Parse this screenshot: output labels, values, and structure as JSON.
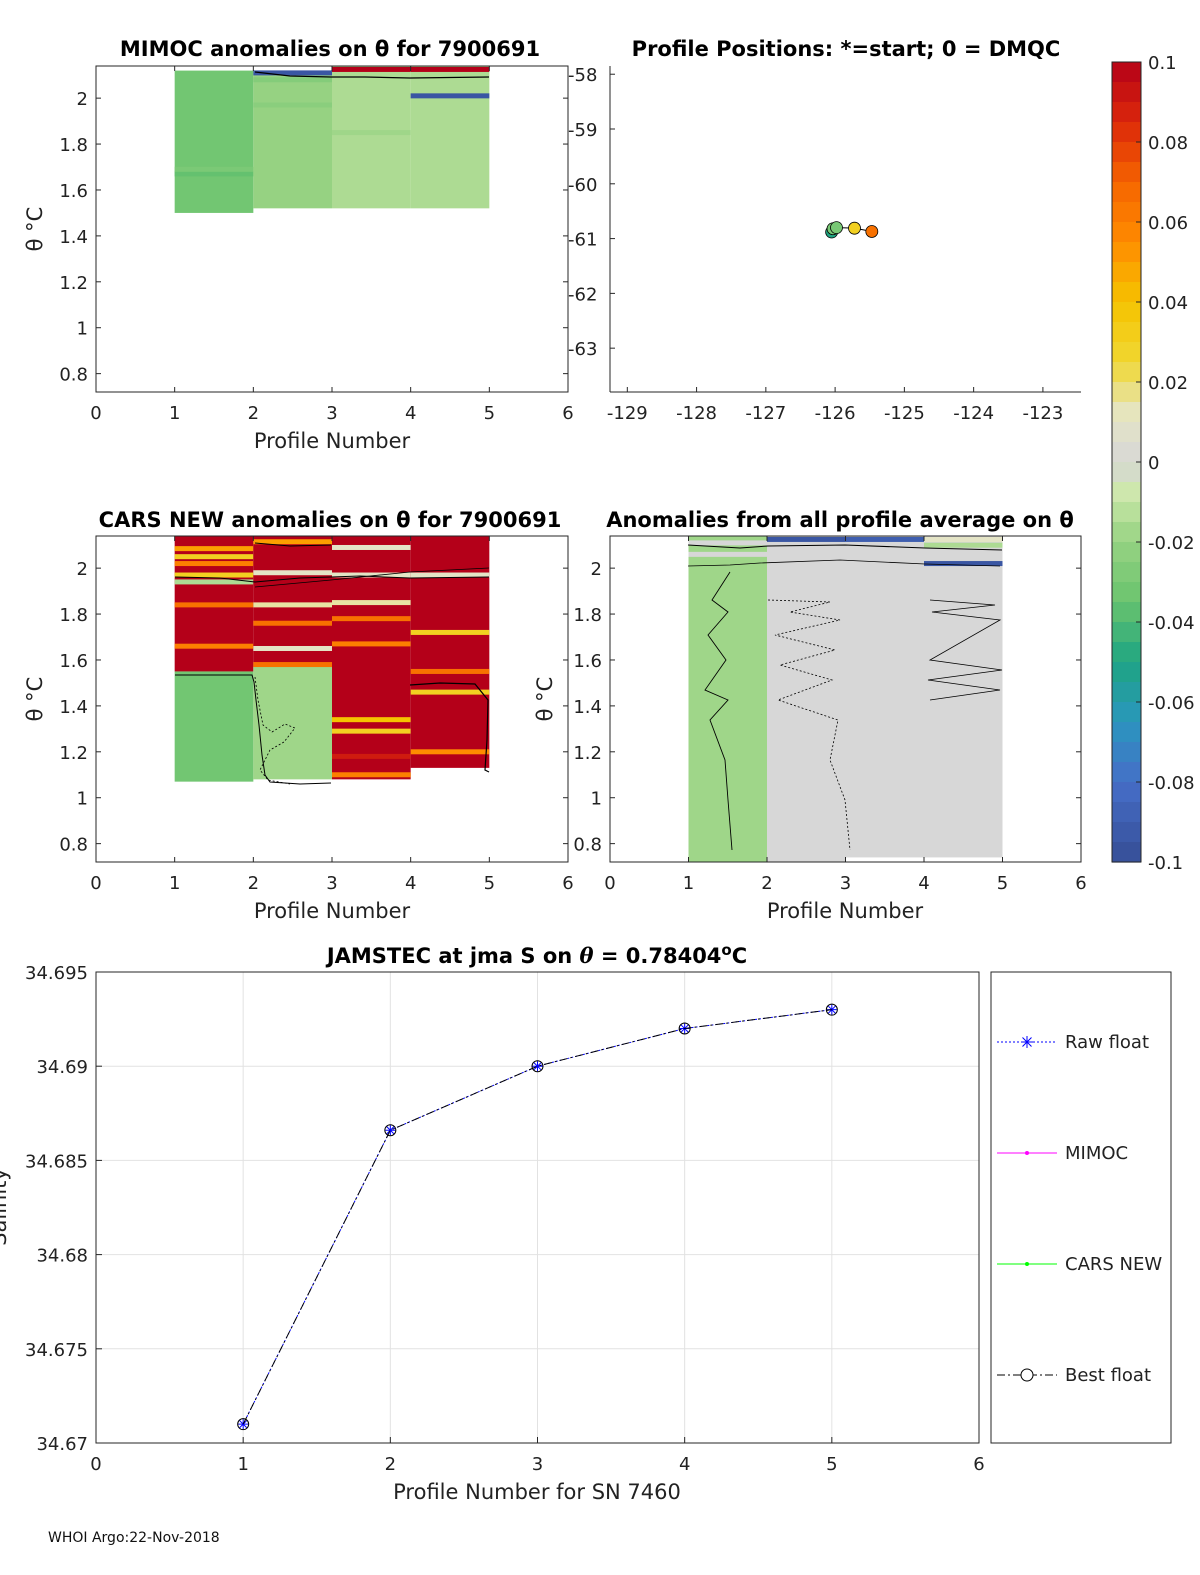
{
  "footer": "WHOI Argo:22-Nov-2018",
  "chart_data": [
    {
      "id": "mimoc",
      "type": "heatmap",
      "title": "MIMOC anomalies on θ  for 7900691",
      "xlabel": "Profile Number",
      "ylabel": "θ °C",
      "xlim": [
        0,
        6
      ],
      "ylim": [
        0.72,
        2.14
      ],
      "xticks": [
        0,
        1,
        2,
        3,
        4,
        5,
        6
      ],
      "yticks": [
        0.8,
        1,
        1.2,
        1.4,
        1.6,
        1.8,
        2
      ],
      "columns": [
        {
          "profile": 1,
          "theta_min": 1.5,
          "theta_max": 2.12,
          "anomaly": -0.032,
          "bands": [
            {
              "theta": 1.67,
              "anomaly": -0.036
            },
            {
              "theta": 1.69,
              "anomaly": -0.029
            }
          ]
        },
        {
          "profile": 2,
          "theta_min": 1.52,
          "theta_max": 2.12,
          "anomaly": -0.02,
          "bands": [
            {
              "theta": 2.11,
              "anomaly": -0.095
            },
            {
              "theta": 2.08,
              "anomaly": -0.026
            },
            {
              "theta": 1.97,
              "anomaly": -0.024
            }
          ]
        },
        {
          "profile": 3,
          "theta_min": 1.52,
          "theta_max": 2.14,
          "anomaly": -0.015,
          "bands": [
            {
              "theta": 2.125,
              "anomaly": 0.1
            },
            {
              "theta": 1.85,
              "anomaly": -0.018
            }
          ]
        },
        {
          "profile": 4,
          "theta_min": 1.52,
          "theta_max": 2.14,
          "anomaly": -0.015,
          "bands": [
            {
              "theta": 2.125,
              "anomaly": 0.1
            },
            {
              "theta": 2.01,
              "anomaly": -0.095
            }
          ]
        }
      ]
    },
    {
      "id": "positions",
      "type": "scatter",
      "title": "Profile Positions: *=start; 0 = DMQC",
      "xlim": [
        -129.25,
        -122.45
      ],
      "ylim": [
        -63.8,
        -57.85
      ],
      "xticks": [
        -129,
        -128,
        -127,
        -126,
        -125,
        -124,
        -123
      ],
      "yticks": [
        -58,
        -59,
        -60,
        -61,
        -62,
        -63
      ],
      "points": [
        {
          "profile": 1,
          "lon": -126.05,
          "lat": -60.88,
          "anomaly": -0.05
        },
        {
          "profile": 2,
          "lon": -126.03,
          "lat": -60.82,
          "anomaly": -0.03
        },
        {
          "profile": 3,
          "lon": -125.98,
          "lat": -60.8,
          "anomaly": -0.03
        },
        {
          "profile": 4,
          "lon": -125.72,
          "lat": -60.81,
          "anomaly": 0.03
        },
        {
          "profile": 5,
          "lon": -125.47,
          "lat": -60.87,
          "anomaly": 0.065
        }
      ]
    },
    {
      "id": "colorbar",
      "type": "colorbar",
      "range": [
        -0.1,
        0.1
      ],
      "tick_labels": [
        "0.1",
        "0.08",
        "0.06",
        "0.04",
        "0.02",
        "0",
        "-0.02",
        "-0.04",
        "-0.06",
        "-0.08",
        "-0.1"
      ]
    },
    {
      "id": "cars",
      "type": "heatmap",
      "title": "CARS NEW anomalies on θ for 7900691",
      "xlabel": "Profile Number",
      "ylabel": "θ °C",
      "xlim": [
        0,
        6
      ],
      "ylim": [
        0.72,
        2.14
      ],
      "xticks": [
        0,
        1,
        2,
        3,
        4,
        5,
        6
      ],
      "yticks": [
        0.8,
        1,
        1.2,
        1.4,
        1.6,
        1.8,
        2
      ],
      "columns": [
        {
          "profile": 1,
          "theta_min": 1.07,
          "theta_max": 2.14,
          "split_theta": 1.55,
          "anomaly_upper": 0.1,
          "anomaly_lower": -0.032,
          "bands": [
            {
              "theta": 2.085,
              "anomaly": 0.05
            },
            {
              "theta": 2.05,
              "anomaly": 0.03
            },
            {
              "theta": 2.02,
              "anomaly": 0.06
            },
            {
              "theta": 1.97,
              "anomaly": 0.03
            },
            {
              "theta": 1.94,
              "anomaly": -0.015
            },
            {
              "theta": 1.84,
              "anomaly": 0.065
            },
            {
              "theta": 1.66,
              "anomaly": 0.06
            }
          ]
        },
        {
          "profile": 2,
          "theta_min": 1.08,
          "theta_max": 2.14,
          "split_theta": 1.57,
          "anomaly_upper": 0.1,
          "anomaly_lower": -0.018,
          "bands": [
            {
              "theta": 2.115,
              "anomaly": 0.05
            },
            {
              "theta": 1.98,
              "anomaly": 0.01
            },
            {
              "theta": 1.84,
              "anomaly": 0.015
            },
            {
              "theta": 1.76,
              "anomaly": 0.065
            },
            {
              "theta": 1.65,
              "anomaly": 0.01
            },
            {
              "theta": 1.58,
              "anomaly": 0.065
            }
          ]
        },
        {
          "profile": 3,
          "theta_min": 1.08,
          "theta_max": 2.14,
          "split_theta": null,
          "anomaly_upper": 0.1,
          "bands": [
            {
              "theta": 2.09,
              "anomaly": 0.01
            },
            {
              "theta": 1.97,
              "anomaly": 0.01
            },
            {
              "theta": 1.85,
              "anomaly": 0.015
            },
            {
              "theta": 1.78,
              "anomaly": 0.065
            },
            {
              "theta": 1.67,
              "anomaly": 0.06
            },
            {
              "theta": 1.34,
              "anomaly": 0.04
            },
            {
              "theta": 1.29,
              "anomaly": 0.03
            },
            {
              "theta": 1.18,
              "anomaly": 0.09
            },
            {
              "theta": 1.1,
              "anomaly": 0.06
            }
          ]
        },
        {
          "profile": 4,
          "theta_min": 1.13,
          "theta_max": 2.14,
          "split_theta": null,
          "anomaly_upper": 0.1,
          "bands": [
            {
              "theta": 1.97,
              "anomaly": 0.01
            },
            {
              "theta": 1.72,
              "anomaly": 0.03
            },
            {
              "theta": 1.55,
              "anomaly": 0.065
            },
            {
              "theta": 1.46,
              "anomaly": 0.03
            },
            {
              "theta": 1.2,
              "anomaly": 0.055
            }
          ]
        }
      ]
    },
    {
      "id": "allavg",
      "type": "heatmap",
      "title": "Anomalies from all profile average on θ",
      "xlabel": "Profile Number",
      "ylabel": "θ °C",
      "xlim": [
        0,
        6
      ],
      "ylim": [
        0.72,
        2.14
      ],
      "xticks": [
        0,
        1,
        2,
        3,
        4,
        5,
        6
      ],
      "yticks": [
        0.8,
        1,
        1.2,
        1.4,
        1.6,
        1.8,
        2
      ],
      "columns": [
        {
          "profile": 1,
          "theta_min": 0.72,
          "theta_max": 2.14,
          "anomaly": -0.018,
          "bands": [
            {
              "theta": 2.11,
              "anomaly": 0.0
            },
            {
              "theta": 2.06,
              "anomaly": 0.0
            }
          ]
        },
        {
          "profile": 2,
          "theta_min": 0.72,
          "theta_max": 2.14,
          "anomaly": 0.0,
          "bands": [
            {
              "theta": 2.125,
              "anomaly": -0.095
            },
            {
              "theta": 2.1,
              "anomaly": 0.0
            }
          ]
        },
        {
          "profile": 3,
          "theta_min": 0.74,
          "theta_max": 2.14,
          "anomaly": 0.0,
          "bands": [
            {
              "theta": 2.125,
              "anomaly": -0.09
            }
          ]
        },
        {
          "profile": 4,
          "theta_min": 0.74,
          "theta_max": 2.14,
          "anomaly": 0.0,
          "bands": [
            {
              "theta": 2.125,
              "anomaly": 0.01
            },
            {
              "theta": 2.1,
              "anomaly": -0.015
            },
            {
              "theta": 2.02,
              "anomaly": -0.095
            }
          ]
        }
      ]
    },
    {
      "id": "salinity",
      "type": "line",
      "title_prefix": "JAMSTEC at jma S on ",
      "title_theta": "θ",
      "title_value": " = 0.78404",
      "title_super": "o",
      "title_unit": "C",
      "xlabel": "Profile Number for SN 7460",
      "ylabel": "Salinity",
      "xlim": [
        0,
        6
      ],
      "ylim": [
        34.67,
        34.695
      ],
      "xticks": [
        0,
        1,
        2,
        3,
        4,
        5,
        6
      ],
      "yticks": [
        "34.67",
        "34.675",
        "34.68",
        "34.685",
        "34.69",
        "34.695"
      ],
      "grid": true,
      "legend_position": "outside-right",
      "series": [
        {
          "name": "Raw float",
          "color": "#0000ff",
          "x": [
            1,
            2,
            3,
            4,
            5
          ],
          "values": [
            34.671,
            34.6866,
            34.69,
            34.692,
            34.693
          ]
        },
        {
          "name": "MIMOC",
          "color": "#ff00ff",
          "x": [],
          "values": []
        },
        {
          "name": "CARS NEW",
          "color": "#00ff00",
          "x": [],
          "values": []
        },
        {
          "name": "Best float",
          "color": "#000000",
          "x": [
            1,
            2,
            3,
            4,
            5
          ],
          "values": [
            34.671,
            34.6866,
            34.69,
            34.692,
            34.693
          ]
        }
      ]
    }
  ]
}
